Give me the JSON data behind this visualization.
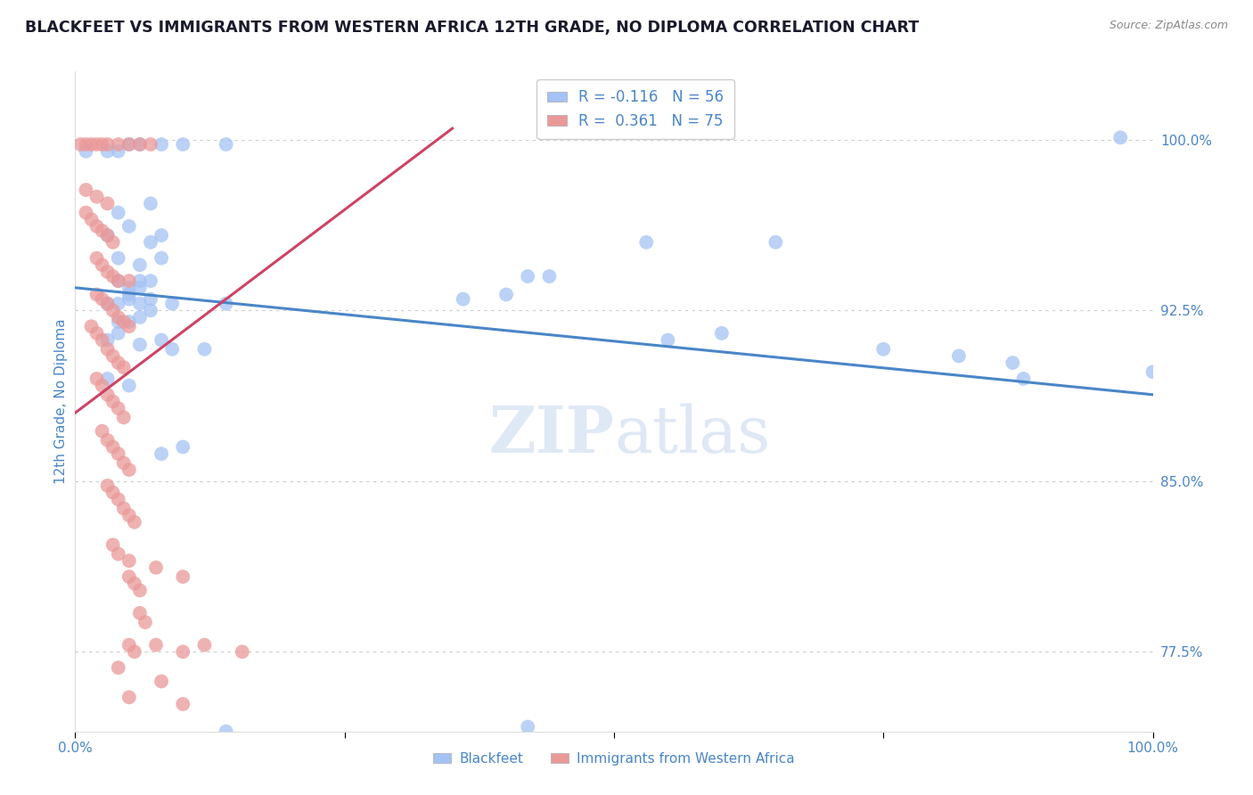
{
  "title": "BLACKFEET VS IMMIGRANTS FROM WESTERN AFRICA 12TH GRADE, NO DIPLOMA CORRELATION CHART",
  "source_text": "Source: ZipAtlas.com",
  "ylabel": "12th Grade, No Diploma",
  "xlim": [
    0.0,
    1.0
  ],
  "ylim": [
    0.74,
    1.03
  ],
  "ytick_values": [
    0.775,
    0.85,
    0.925,
    1.0
  ],
  "xtick_positions": [
    0.0,
    0.25,
    0.5,
    0.75,
    1.0
  ],
  "xtick_labels": [
    "0.0%",
    "",
    "",
    "",
    "100.0%"
  ],
  "blue_color": "#a4c2f4",
  "pink_color": "#ea9999",
  "blue_line_color": "#4a86c8",
  "pink_line_color": "#cc4466",
  "axis_label_color": "#4a86c8",
  "title_color": "#1a1a2e",
  "watermark_color": "#d0dff5",
  "background_color": "#ffffff",
  "grid_color": "#cccccc",
  "blue_points": [
    [
      0.01,
      0.995
    ],
    [
      0.03,
      0.995
    ],
    [
      0.04,
      0.995
    ],
    [
      0.05,
      0.998
    ],
    [
      0.06,
      0.998
    ],
    [
      0.08,
      0.998
    ],
    [
      0.1,
      0.998
    ],
    [
      0.14,
      0.998
    ],
    [
      0.97,
      1.001
    ],
    [
      0.04,
      0.968
    ],
    [
      0.07,
      0.972
    ],
    [
      0.03,
      0.958
    ],
    [
      0.05,
      0.962
    ],
    [
      0.07,
      0.955
    ],
    [
      0.08,
      0.958
    ],
    [
      0.04,
      0.948
    ],
    [
      0.06,
      0.945
    ],
    [
      0.08,
      0.948
    ],
    [
      0.04,
      0.938
    ],
    [
      0.05,
      0.935
    ],
    [
      0.06,
      0.938
    ],
    [
      0.07,
      0.938
    ],
    [
      0.03,
      0.928
    ],
    [
      0.05,
      0.93
    ],
    [
      0.06,
      0.928
    ],
    [
      0.07,
      0.93
    ],
    [
      0.04,
      0.92
    ],
    [
      0.05,
      0.92
    ],
    [
      0.06,
      0.922
    ],
    [
      0.04,
      0.928
    ],
    [
      0.05,
      0.932
    ],
    [
      0.06,
      0.935
    ],
    [
      0.07,
      0.925
    ],
    [
      0.09,
      0.928
    ],
    [
      0.14,
      0.928
    ],
    [
      0.36,
      0.93
    ],
    [
      0.4,
      0.932
    ],
    [
      0.42,
      0.94
    ],
    [
      0.44,
      0.94
    ],
    [
      0.53,
      0.955
    ],
    [
      0.65,
      0.955
    ],
    [
      0.03,
      0.912
    ],
    [
      0.04,
      0.915
    ],
    [
      0.06,
      0.91
    ],
    [
      0.08,
      0.912
    ],
    [
      0.09,
      0.908
    ],
    [
      0.12,
      0.908
    ],
    [
      0.55,
      0.912
    ],
    [
      0.6,
      0.915
    ],
    [
      0.03,
      0.895
    ],
    [
      0.05,
      0.892
    ],
    [
      0.08,
      0.862
    ],
    [
      0.1,
      0.865
    ],
    [
      0.75,
      0.908
    ],
    [
      0.82,
      0.905
    ],
    [
      0.87,
      0.902
    ],
    [
      0.88,
      0.895
    ],
    [
      1.0,
      0.898
    ],
    [
      0.14,
      0.74
    ],
    [
      0.42,
      0.742
    ]
  ],
  "pink_points": [
    [
      0.005,
      0.998
    ],
    [
      0.01,
      0.998
    ],
    [
      0.015,
      0.998
    ],
    [
      0.02,
      0.998
    ],
    [
      0.025,
      0.998
    ],
    [
      0.03,
      0.998
    ],
    [
      0.04,
      0.998
    ],
    [
      0.05,
      0.998
    ],
    [
      0.06,
      0.998
    ],
    [
      0.07,
      0.998
    ],
    [
      0.01,
      0.978
    ],
    [
      0.02,
      0.975
    ],
    [
      0.03,
      0.972
    ],
    [
      0.01,
      0.968
    ],
    [
      0.015,
      0.965
    ],
    [
      0.02,
      0.962
    ],
    [
      0.025,
      0.96
    ],
    [
      0.03,
      0.958
    ],
    [
      0.035,
      0.955
    ],
    [
      0.02,
      0.948
    ],
    [
      0.025,
      0.945
    ],
    [
      0.03,
      0.942
    ],
    [
      0.035,
      0.94
    ],
    [
      0.04,
      0.938
    ],
    [
      0.05,
      0.938
    ],
    [
      0.02,
      0.932
    ],
    [
      0.025,
      0.93
    ],
    [
      0.03,
      0.928
    ],
    [
      0.035,
      0.925
    ],
    [
      0.04,
      0.922
    ],
    [
      0.045,
      0.92
    ],
    [
      0.05,
      0.918
    ],
    [
      0.015,
      0.918
    ],
    [
      0.02,
      0.915
    ],
    [
      0.025,
      0.912
    ],
    [
      0.03,
      0.908
    ],
    [
      0.035,
      0.905
    ],
    [
      0.04,
      0.902
    ],
    [
      0.045,
      0.9
    ],
    [
      0.02,
      0.895
    ],
    [
      0.025,
      0.892
    ],
    [
      0.03,
      0.888
    ],
    [
      0.035,
      0.885
    ],
    [
      0.04,
      0.882
    ],
    [
      0.045,
      0.878
    ],
    [
      0.025,
      0.872
    ],
    [
      0.03,
      0.868
    ],
    [
      0.035,
      0.865
    ],
    [
      0.04,
      0.862
    ],
    [
      0.045,
      0.858
    ],
    [
      0.05,
      0.855
    ],
    [
      0.03,
      0.848
    ],
    [
      0.035,
      0.845
    ],
    [
      0.04,
      0.842
    ],
    [
      0.045,
      0.838
    ],
    [
      0.05,
      0.835
    ],
    [
      0.055,
      0.832
    ],
    [
      0.035,
      0.822
    ],
    [
      0.04,
      0.818
    ],
    [
      0.05,
      0.815
    ],
    [
      0.05,
      0.808
    ],
    [
      0.055,
      0.805
    ],
    [
      0.06,
      0.802
    ],
    [
      0.06,
      0.792
    ],
    [
      0.065,
      0.788
    ],
    [
      0.05,
      0.778
    ],
    [
      0.055,
      0.775
    ],
    [
      0.075,
      0.812
    ],
    [
      0.1,
      0.808
    ],
    [
      0.075,
      0.778
    ],
    [
      0.1,
      0.775
    ],
    [
      0.12,
      0.778
    ],
    [
      0.155,
      0.775
    ],
    [
      0.04,
      0.768
    ],
    [
      0.08,
      0.762
    ],
    [
      0.05,
      0.755
    ],
    [
      0.1,
      0.752
    ]
  ],
  "blue_line": [
    [
      0.0,
      0.935
    ],
    [
      1.0,
      0.888
    ]
  ],
  "pink_line": [
    [
      0.0,
      0.88
    ],
    [
      0.35,
      1.005
    ]
  ]
}
